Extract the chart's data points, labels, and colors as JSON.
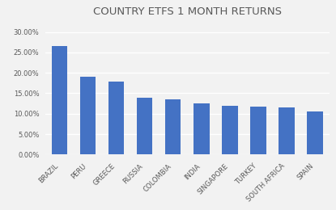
{
  "title": "COUNTRY ETFS 1 MONTH RETURNS",
  "categories": [
    "BRAZIL",
    "PERU",
    "GREECE",
    "RUSSIA",
    "COLOMBIA",
    "INDIA",
    "SINGAPORE",
    "TURKEY",
    "SOUTH AFRICA",
    "SPAIN"
  ],
  "values": [
    0.265,
    0.19,
    0.178,
    0.138,
    0.135,
    0.125,
    0.12,
    0.118,
    0.115,
    0.105
  ],
  "bar_color": "#4472C4",
  "ylim": [
    0,
    0.32
  ],
  "yticks": [
    0.0,
    0.05,
    0.1,
    0.15,
    0.2,
    0.25,
    0.3
  ],
  "background_color": "#f2f2f2",
  "plot_bg_color": "#f2f2f2",
  "grid_color": "#ffffff",
  "title_fontsize": 9.5,
  "tick_fontsize": 6.0,
  "title_color": "#595959",
  "tick_color": "#595959"
}
